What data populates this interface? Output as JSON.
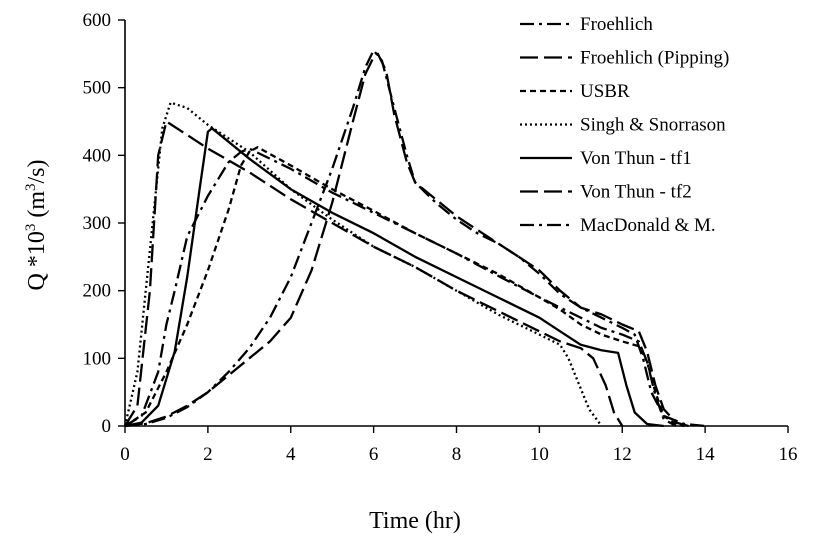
{
  "chart_data": {
    "type": "line",
    "xlabel": "Time (hr)",
    "ylabel_parts": {
      "q": "Q *10",
      "exp": "3",
      "unit_pre": " (m",
      "unit_exp": "3",
      "unit_post": "/s)"
    },
    "xlim": [
      0,
      16
    ],
    "ylim": [
      0,
      600
    ],
    "x_ticks": [
      "0",
      "2",
      "4",
      "6",
      "8",
      "10",
      "12",
      "14",
      "16"
    ],
    "y_ticks": [
      "0",
      "100",
      "200",
      "300",
      "400",
      "500",
      "600"
    ],
    "grid": false,
    "legend_position": "top-right",
    "line_color": "#000000",
    "series": [
      {
        "name": "Froehlich",
        "dash": "dash-dot",
        "points": [
          [
            0,
            0
          ],
          [
            0.5,
            3
          ],
          [
            1,
            12
          ],
          [
            1.5,
            28
          ],
          [
            2,
            50
          ],
          [
            2.5,
            80
          ],
          [
            3,
            115
          ],
          [
            3.5,
            160
          ],
          [
            4,
            220
          ],
          [
            4.5,
            300
          ],
          [
            5,
            380
          ],
          [
            5.5,
            470
          ],
          [
            5.8,
            530
          ],
          [
            6,
            555
          ],
          [
            6.2,
            540
          ],
          [
            6.5,
            470
          ],
          [
            6.8,
            400
          ],
          [
            7,
            360
          ],
          [
            7.5,
            330
          ],
          [
            8,
            305
          ],
          [
            8.5,
            285
          ],
          [
            9,
            270
          ],
          [
            9.5,
            250
          ],
          [
            10,
            225
          ],
          [
            10.5,
            195
          ],
          [
            11,
            175
          ],
          [
            11.5,
            160
          ],
          [
            12,
            145
          ],
          [
            12.3,
            135
          ],
          [
            12.5,
            100
          ],
          [
            12.7,
            50
          ],
          [
            13,
            15
          ],
          [
            13.5,
            3
          ],
          [
            14,
            0
          ]
        ]
      },
      {
        "name": "Froehlich (Pipping)",
        "dash": "long-dash",
        "points": [
          [
            0,
            0
          ],
          [
            0.5,
            4
          ],
          [
            1,
            14
          ],
          [
            1.5,
            30
          ],
          [
            2,
            50
          ],
          [
            2.5,
            75
          ],
          [
            3,
            100
          ],
          [
            3.5,
            125
          ],
          [
            4,
            160
          ],
          [
            4.5,
            230
          ],
          [
            5,
            330
          ],
          [
            5.5,
            450
          ],
          [
            5.8,
            520
          ],
          [
            6,
            545
          ],
          [
            6.1,
            550
          ],
          [
            6.3,
            525
          ],
          [
            6.5,
            460
          ],
          [
            6.8,
            390
          ],
          [
            7,
            360
          ],
          [
            7.5,
            335
          ],
          [
            8,
            310
          ],
          [
            8.5,
            290
          ],
          [
            9,
            270
          ],
          [
            9.5,
            250
          ],
          [
            10,
            230
          ],
          [
            10.5,
            200
          ],
          [
            11,
            175
          ],
          [
            11.5,
            165
          ],
          [
            12,
            150
          ],
          [
            12.4,
            140
          ],
          [
            12.6,
            110
          ],
          [
            12.8,
            60
          ],
          [
            13,
            25
          ],
          [
            13.3,
            5
          ],
          [
            13.6,
            0
          ]
        ]
      },
      {
        "name": "USBR",
        "dash": "short-dash",
        "points": [
          [
            0,
            0
          ],
          [
            0.5,
            20
          ],
          [
            1,
            80
          ],
          [
            1.5,
            150
          ],
          [
            2,
            230
          ],
          [
            2.5,
            320
          ],
          [
            2.8,
            385
          ],
          [
            3,
            405
          ],
          [
            3.2,
            412
          ],
          [
            4,
            385
          ],
          [
            5,
            350
          ],
          [
            6,
            318
          ],
          [
            7,
            285
          ],
          [
            8,
            255
          ],
          [
            9,
            225
          ],
          [
            10,
            190
          ],
          [
            10.5,
            172
          ],
          [
            11,
            150
          ],
          [
            11.5,
            135
          ],
          [
            12,
            125
          ],
          [
            12.4,
            118
          ],
          [
            12.6,
            95
          ],
          [
            12.8,
            50
          ],
          [
            13,
            15
          ],
          [
            13.3,
            2
          ],
          [
            13.5,
            0
          ]
        ]
      },
      {
        "name": "Singh & Snorrason",
        "dash": "dotted",
        "points": [
          [
            0,
            0
          ],
          [
            0.3,
            80
          ],
          [
            0.6,
            260
          ],
          [
            0.9,
            440
          ],
          [
            1.1,
            478
          ],
          [
            1.5,
            470
          ],
          [
            2,
            445
          ],
          [
            3,
            405
          ],
          [
            4,
            350
          ],
          [
            5,
            305
          ],
          [
            6,
            265
          ],
          [
            7,
            235
          ],
          [
            8,
            200
          ],
          [
            9,
            165
          ],
          [
            10,
            135
          ],
          [
            10.5,
            120
          ],
          [
            10.7,
            100
          ],
          [
            11,
            55
          ],
          [
            11.2,
            25
          ],
          [
            11.5,
            0
          ]
        ]
      },
      {
        "name": "Von Thun - tf1",
        "dash": "solid",
        "points": [
          [
            0,
            0
          ],
          [
            0.4,
            5
          ],
          [
            0.8,
            30
          ],
          [
            1.2,
            110
          ],
          [
            1.5,
            220
          ],
          [
            1.8,
            350
          ],
          [
            2,
            435
          ],
          [
            2.1,
            440
          ],
          [
            3,
            395
          ],
          [
            4,
            350
          ],
          [
            5,
            315
          ],
          [
            6,
            285
          ],
          [
            7,
            250
          ],
          [
            8,
            220
          ],
          [
            9,
            190
          ],
          [
            10,
            160
          ],
          [
            10.5,
            140
          ],
          [
            11,
            120
          ],
          [
            11.5,
            112
          ],
          [
            11.9,
            108
          ],
          [
            12.1,
            60
          ],
          [
            12.3,
            20
          ],
          [
            12.6,
            3
          ],
          [
            13,
            0
          ]
        ]
      },
      {
        "name": "Von Thun - tf2",
        "dash": "long-dash",
        "points": [
          [
            0,
            0
          ],
          [
            0.3,
            30
          ],
          [
            0.6,
            200
          ],
          [
            0.8,
            400
          ],
          [
            1,
            450
          ],
          [
            1.5,
            430
          ],
          [
            2,
            410
          ],
          [
            3,
            375
          ],
          [
            4,
            335
          ],
          [
            5,
            300
          ],
          [
            6,
            265
          ],
          [
            7,
            235
          ],
          [
            8,
            200
          ],
          [
            9,
            170
          ],
          [
            10,
            140
          ],
          [
            10.5,
            125
          ],
          [
            11,
            115
          ],
          [
            11.3,
            100
          ],
          [
            11.6,
            60
          ],
          [
            11.8,
            20
          ],
          [
            12,
            0
          ]
        ]
      },
      {
        "name": "MacDonald & M.",
        "dash": "dash-dot",
        "points": [
          [
            0,
            0
          ],
          [
            0.4,
            15
          ],
          [
            0.8,
            80
          ],
          [
            1,
            150
          ],
          [
            1.2,
            200
          ],
          [
            1.5,
            280
          ],
          [
            2,
            340
          ],
          [
            2.5,
            390
          ],
          [
            2.8,
            405
          ],
          [
            3,
            410
          ],
          [
            4,
            380
          ],
          [
            5,
            345
          ],
          [
            6,
            315
          ],
          [
            7,
            285
          ],
          [
            8,
            255
          ],
          [
            9,
            222
          ],
          [
            10,
            190
          ],
          [
            11,
            160
          ],
          [
            11.5,
            145
          ],
          [
            12,
            135
          ],
          [
            12.4,
            125
          ],
          [
            12.6,
            95
          ],
          [
            12.8,
            45
          ],
          [
            13,
            10
          ],
          [
            13.3,
            0
          ]
        ]
      }
    ]
  }
}
